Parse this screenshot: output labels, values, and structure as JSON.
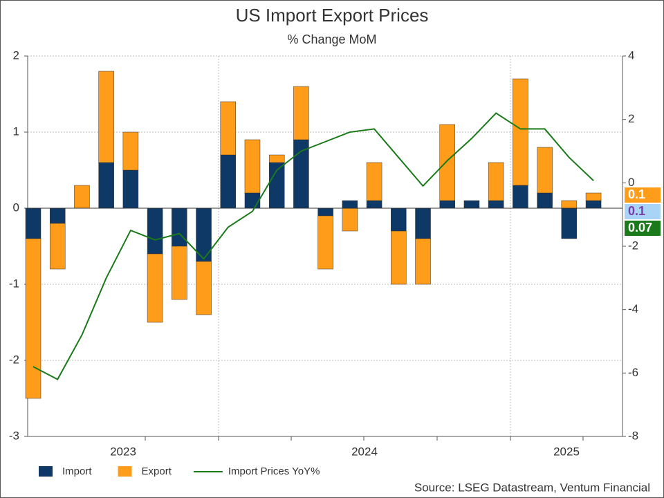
{
  "chart_data": {
    "type": "bar",
    "title": "US Import Export Prices",
    "subtitle": "% Change MoM",
    "source": "Source: LSEG Datastream, Ventum Financial",
    "categories": [
      null,
      null,
      null,
      null,
      null,
      null,
      null,
      null,
      null,
      null,
      null,
      null,
      null,
      null,
      null,
      null,
      null,
      null,
      null,
      null,
      null,
      null,
      null,
      null
    ],
    "year_labels": [
      "2023",
      "2024",
      "2025"
    ],
    "stacked": true,
    "grid": true,
    "legend": "bottom",
    "ylim": [
      -3,
      2
    ],
    "yticks": [
      -3,
      -2,
      -1,
      0,
      1,
      2
    ],
    "y2lim": [
      -8,
      4
    ],
    "y2ticks": [
      -8,
      -6,
      -4,
      -2,
      0,
      2,
      4
    ],
    "series": [
      {
        "name": "Import",
        "type": "bar",
        "color": "#0e3866",
        "values": [
          -0.4,
          -0.2,
          0,
          0.6,
          0.5,
          -0.6,
          -0.5,
          -0.7,
          0.7,
          0.2,
          0.6,
          0.9,
          -0.1,
          0.1,
          0.1,
          -0.3,
          -0.4,
          0.1,
          0.1,
          0.1,
          0.3,
          0.2,
          -0.4,
          0.1
        ]
      },
      {
        "name": "Export",
        "type": "bar",
        "color": "#ff9c1a",
        "values": [
          -2.1,
          -0.6,
          0.3,
          1.2,
          0.5,
          -0.9,
          -0.7,
          -0.7,
          0.7,
          0.7,
          0.1,
          0.7,
          -0.7,
          -0.3,
          0.5,
          -0.7,
          -0.6,
          1.0,
          0,
          0.5,
          1.4,
          0.6,
          0.1,
          0.1
        ]
      },
      {
        "name": "Import Prices YoY%",
        "type": "line",
        "axis": "y2",
        "color": "#1a7a1a",
        "values": [
          -5.8,
          -6.2,
          -4.8,
          -3.0,
          -1.5,
          -1.8,
          -1.6,
          -2.4,
          -1.4,
          -0.9,
          0.4,
          1.0,
          1.3,
          1.6,
          1.7,
          0.8,
          -0.1,
          0.7,
          1.4,
          2.2,
          1.7,
          1.7,
          0.8,
          0.07
        ]
      }
    ]
  }
}
